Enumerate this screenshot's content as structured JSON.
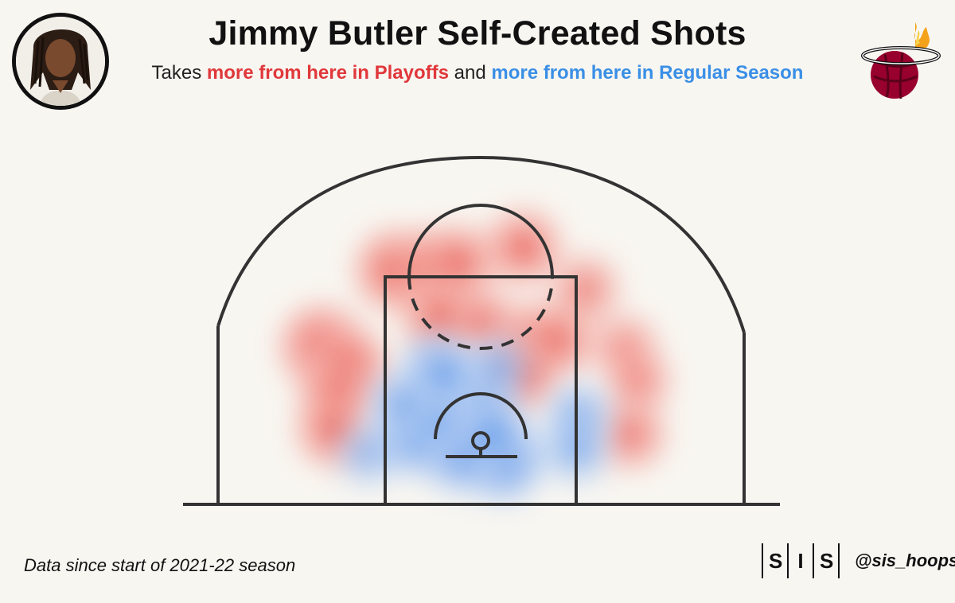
{
  "header": {
    "title": "Jimmy Butler Self-Created Shots",
    "subtitle_prefix": "Takes ",
    "subtitle_red": "more from here in Playoffs",
    "subtitle_mid": " and ",
    "subtitle_blue": "more from here in Regular Season"
  },
  "footer": {
    "note": "Data since start of 2021-22 season",
    "brand_letters": [
      "S",
      "I",
      "S"
    ],
    "handle": "@sis_hoops"
  },
  "colors": {
    "playoffs": "#e8473f",
    "regular_season": "#3a86e8",
    "court_line": "#333333",
    "background": "#f8f6f1"
  },
  "icons": {
    "avatar": "player-headshot-icon",
    "logo": "miami-heat-logo-icon"
  },
  "chart_data": {
    "type": "heatmap",
    "title": "Jimmy Butler Self-Created Shots",
    "legend": [
      {
        "name": "more from here in Playoffs",
        "color": "#e8473f"
      },
      {
        "name": "more from here in Regular Season",
        "color": "#3a86e8"
      }
    ],
    "court_units": "feet from hoop (x lateral, y toward half court)",
    "xlim": [
      -25,
      25
    ],
    "ylim": [
      -5,
      30
    ],
    "series": [
      {
        "name": "more from here in Playoffs",
        "hotspots": [
          {
            "x": -20.8,
            "y": 14.0,
            "intensity": 0.95
          },
          {
            "x": -17.6,
            "y": 11.2,
            "intensity": 0.95
          },
          {
            "x": -18.9,
            "y": 7.5,
            "intensity": 0.7
          },
          {
            "x": -19.3,
            "y": 3.0,
            "intensity": 0.65
          },
          {
            "x": -11.1,
            "y": 24.0,
            "intensity": 0.9
          },
          {
            "x": -6.5,
            "y": 24.5,
            "intensity": 0.7
          },
          {
            "x": -2.8,
            "y": 25.0,
            "intensity": 0.65
          },
          {
            "x": 5.6,
            "y": 27.0,
            "intensity": 0.7
          },
          {
            "x": -5.2,
            "y": 17.8,
            "intensity": 0.75
          },
          {
            "x": 0.2,
            "y": 17.2,
            "intensity": 0.5
          },
          {
            "x": 6.9,
            "y": 14.8,
            "intensity": 0.7
          },
          {
            "x": 10.1,
            "y": 14.8,
            "intensity": 0.6
          },
          {
            "x": 5.7,
            "y": 10.2,
            "intensity": 0.6
          },
          {
            "x": 13.7,
            "y": 21.5,
            "intensity": 0.45
          },
          {
            "x": 18.9,
            "y": 13.8,
            "intensity": 0.4
          },
          {
            "x": 19.6,
            "y": 2.5,
            "intensity": 0.55
          },
          {
            "x": 20.6,
            "y": 9.5,
            "intensity": 0.4
          }
        ]
      },
      {
        "name": "more from here in Regular Season",
        "hotspots": [
          {
            "x": 2.9,
            "y": -0.8,
            "intensity": 0.95
          },
          {
            "x": -2.4,
            "y": 0.2,
            "intensity": 0.9
          },
          {
            "x": -8.3,
            "y": 2.0,
            "intensity": 0.75
          },
          {
            "x": -5.6,
            "y": 4.8,
            "intensity": 0.55
          },
          {
            "x": -5.6,
            "y": 11.0,
            "intensity": 0.6
          },
          {
            "x": -4.6,
            "y": 10.2,
            "intensity": 0.5
          },
          {
            "x": 0.6,
            "y": 6.8,
            "intensity": 0.45
          },
          {
            "x": 1.6,
            "y": 2.5,
            "intensity": 0.6
          },
          {
            "x": -10.3,
            "y": 6.5,
            "intensity": 0.45
          },
          {
            "x": 12.8,
            "y": 4.8,
            "intensity": 0.45
          },
          {
            "x": 12.6,
            "y": 0.5,
            "intensity": 0.4
          },
          {
            "x": 2.2,
            "y": 11.2,
            "intensity": 0.35
          },
          {
            "x": -14.7,
            "y": 0.0,
            "intensity": 0.3
          }
        ]
      }
    ]
  }
}
